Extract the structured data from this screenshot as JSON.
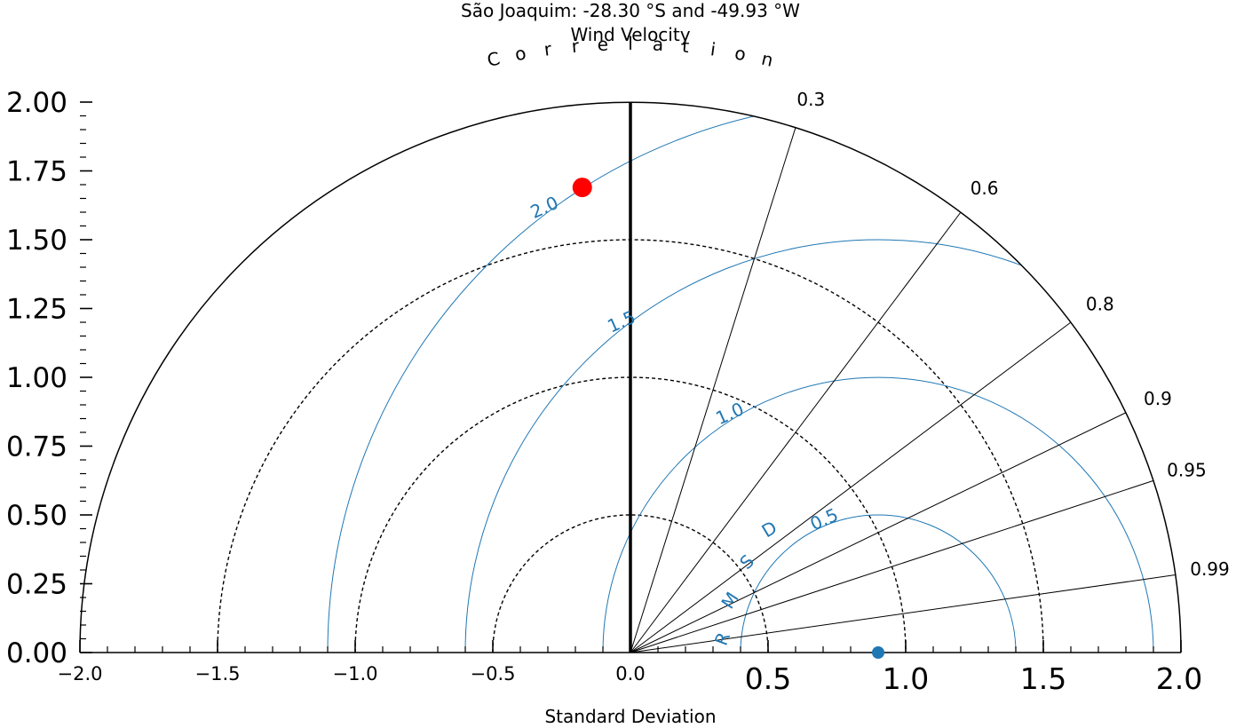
{
  "chart_data": {
    "type": "taylor-diagram",
    "title": "São Joaquim: -28.30 °S and -49.93 °W",
    "subtitle": "Wind Velocity",
    "angular_axis_label": "Correlation",
    "xlabel": "Standard Deviation",
    "ylim": [
      0,
      2.0
    ],
    "xlim": [
      -2.0,
      2.0
    ],
    "reference_std": 0.9,
    "left_y_ticks": [
      "0.00",
      "0.25",
      "0.50",
      "0.75",
      "1.00",
      "1.25",
      "1.50",
      "1.75",
      "2.00"
    ],
    "x_ticks_small": [
      "−2.0",
      "−1.5",
      "−1.0",
      "−0.5",
      "0.0"
    ],
    "x_ticks_large": [
      "0.5",
      "1.0",
      "1.5",
      "2.0"
    ],
    "std_arcs": [
      0.5,
      1.0,
      1.5
    ],
    "correlation_ticks": [
      {
        "label": "0.3",
        "value": 0.3
      },
      {
        "label": "0.6",
        "value": 0.6
      },
      {
        "label": "0.8",
        "value": 0.8
      },
      {
        "label": "0.9",
        "value": 0.9
      },
      {
        "label": "0.95",
        "value": 0.95
      },
      {
        "label": "0.99",
        "value": 0.99
      }
    ],
    "rmsd_arcs": [
      {
        "value": 0.5,
        "label": "0.5"
      },
      {
        "value": 1.0,
        "label": "1.0"
      },
      {
        "value": 1.5,
        "label": "1.5"
      },
      {
        "value": 2.0,
        "label": "2.0"
      }
    ],
    "rmsd_axis_label": "RMSD",
    "points": [
      {
        "role": "reference",
        "x": 0.9,
        "y": 0.0,
        "color": "#1f77b4"
      },
      {
        "role": "model",
        "x": -0.175,
        "y": 1.69,
        "color": "#ff0000"
      }
    ],
    "colors": {
      "rmsd": "#1f77b4",
      "axes": "#000000"
    }
  }
}
